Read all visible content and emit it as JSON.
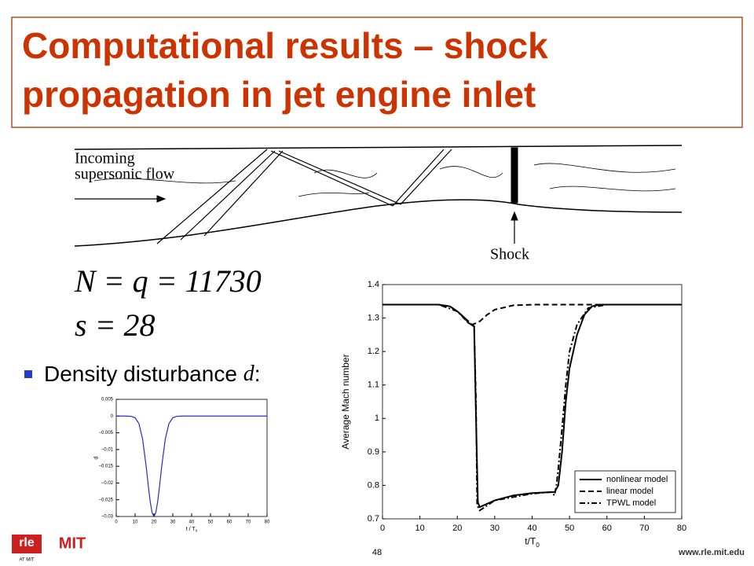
{
  "title_lines": [
    "Computational results – shock",
    "propagation in jet engine inlet"
  ],
  "figure": {
    "flow_label_lines": [
      "Incoming",
      "supersonic flow"
    ],
    "shock_label": "Shock"
  },
  "equations": [
    "N = q = 11730",
    "s = 28"
  ],
  "bullet": {
    "text": "Density disturbance",
    "variable": "d",
    "colon": ":"
  },
  "chart_data": [
    {
      "type": "line",
      "xlabel": "t / T",
      "xlabel_sub": "0",
      "ylabel": "d",
      "xlim": [
        0,
        80
      ],
      "ylim": [
        -0.03,
        0.005
      ],
      "xticks": [
        0,
        10,
        20,
        30,
        40,
        50,
        60,
        70,
        80
      ],
      "yticks": [
        0.005,
        0,
        {
          "value": -0.005,
          "label": "−0.005"
        },
        {
          "value": -0.01,
          "label": "−0.01"
        },
        {
          "value": -0.015,
          "label": "−0.015"
        },
        {
          "value": -0.02,
          "label": "−0.02"
        },
        {
          "value": -0.025,
          "label": "−0.025"
        },
        {
          "value": -0.03,
          "label": "−0.03"
        }
      ],
      "series": [
        {
          "name": "d",
          "color": "#2a2ad0",
          "dash": "solid",
          "x": [
            0,
            5,
            8,
            10,
            12,
            14,
            16,
            17,
            18,
            19,
            20,
            21,
            22,
            23,
            24,
            26,
            28,
            30,
            32,
            35,
            40,
            50,
            60,
            70,
            80
          ],
          "values": [
            0,
            0,
            -0.0001,
            -0.0005,
            -0.0022,
            -0.0069,
            -0.0156,
            -0.0208,
            -0.0255,
            -0.0288,
            -0.03,
            -0.0288,
            -0.0255,
            -0.0208,
            -0.0156,
            -0.0069,
            -0.0022,
            -0.0005,
            -0.0001,
            0,
            0,
            0,
            0,
            0,
            0
          ]
        }
      ]
    },
    {
      "type": "line",
      "xlabel": "t/T",
      "xlabel_sub": "0",
      "ylabel": "Average Mach number",
      "xlim": [
        0,
        80
      ],
      "ylim": [
        0.7,
        1.4
      ],
      "xticks": [
        0,
        10,
        20,
        30,
        40,
        50,
        60,
        70,
        80
      ],
      "yticks": [
        0.7,
        0.8,
        0.9,
        1,
        1.1,
        1.2,
        1.3,
        1.4
      ],
      "legend": "lower right",
      "series": [
        {
          "name": "nonlinear model",
          "color": "#000000",
          "dash": "solid",
          "x": [
            0,
            15,
            18,
            20,
            22,
            23,
            24,
            24.5,
            25,
            25.5,
            26,
            28,
            30,
            35,
            40,
            45,
            46,
            47,
            48,
            49,
            50,
            52,
            54,
            56,
            58,
            60,
            70,
            80
          ],
          "values": [
            1.34,
            1.34,
            1.335,
            1.32,
            1.3,
            1.285,
            1.28,
            1.275,
            1.0,
            0.75,
            0.735,
            0.745,
            0.755,
            0.77,
            0.777,
            0.78,
            0.78,
            0.8,
            0.9,
            1.05,
            1.15,
            1.25,
            1.31,
            1.335,
            1.34,
            1.34,
            1.34,
            1.34
          ]
        },
        {
          "name": "linear model",
          "color": "#000000",
          "dash": "dashed",
          "x": [
            0,
            15,
            18,
            20,
            22,
            24,
            26,
            28,
            30,
            35,
            40,
            50,
            60,
            70,
            80
          ],
          "values": [
            1.34,
            1.34,
            1.335,
            1.32,
            1.3,
            1.28,
            1.29,
            1.31,
            1.325,
            1.338,
            1.34,
            1.34,
            1.34,
            1.34,
            1.34
          ]
        },
        {
          "name": "TPWL model",
          "color": "#000000",
          "dash": "dashdot",
          "x": [
            0,
            15,
            20,
            23,
            24.5,
            25,
            25.3,
            26,
            30,
            40,
            45,
            46,
            46.5,
            47,
            48,
            49,
            50,
            52,
            55,
            60,
            80
          ],
          "values": [
            1.34,
            1.34,
            1.32,
            1.285,
            1.275,
            1.05,
            0.74,
            0.725,
            0.755,
            0.775,
            0.78,
            0.77,
            0.8,
            0.85,
            0.97,
            1.1,
            1.2,
            1.28,
            1.33,
            1.34,
            1.34
          ]
        }
      ]
    }
  ],
  "page_number": "48",
  "logos": {
    "rle": "rle",
    "rle_sub": "AT MIT",
    "mit": "MIT"
  },
  "footer_url": "www.rle.mit.edu"
}
